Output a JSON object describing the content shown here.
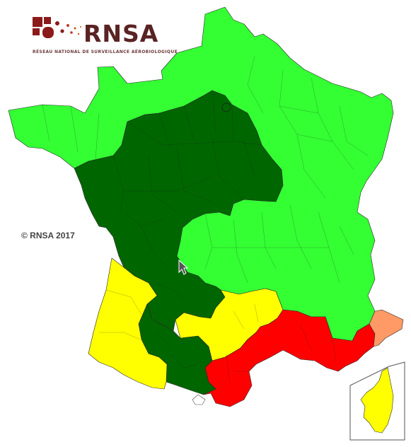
{
  "header": {
    "brand": "RNSA",
    "tagline": "RÉSEAU NATIONAL DE SURVEILLANCE AÉROBIOLOGIQUE"
  },
  "copyright": "© RNSA 2017",
  "colors": {
    "light_green": "#33ff33",
    "dark_green": "#006600",
    "yellow": "#ffff00",
    "orange": "#ff9966",
    "red": "#ff0000",
    "brand": "#8b1a1a",
    "brand_text": "#5a2323"
  },
  "legend_levels": {
    "light_green": "level-1",
    "dark_green": "level-2",
    "yellow": "level-3",
    "orange": "level-4",
    "red": "level-5"
  },
  "icons": [
    "rnsa-logo-icon",
    "mouse-cursor-icon"
  ]
}
